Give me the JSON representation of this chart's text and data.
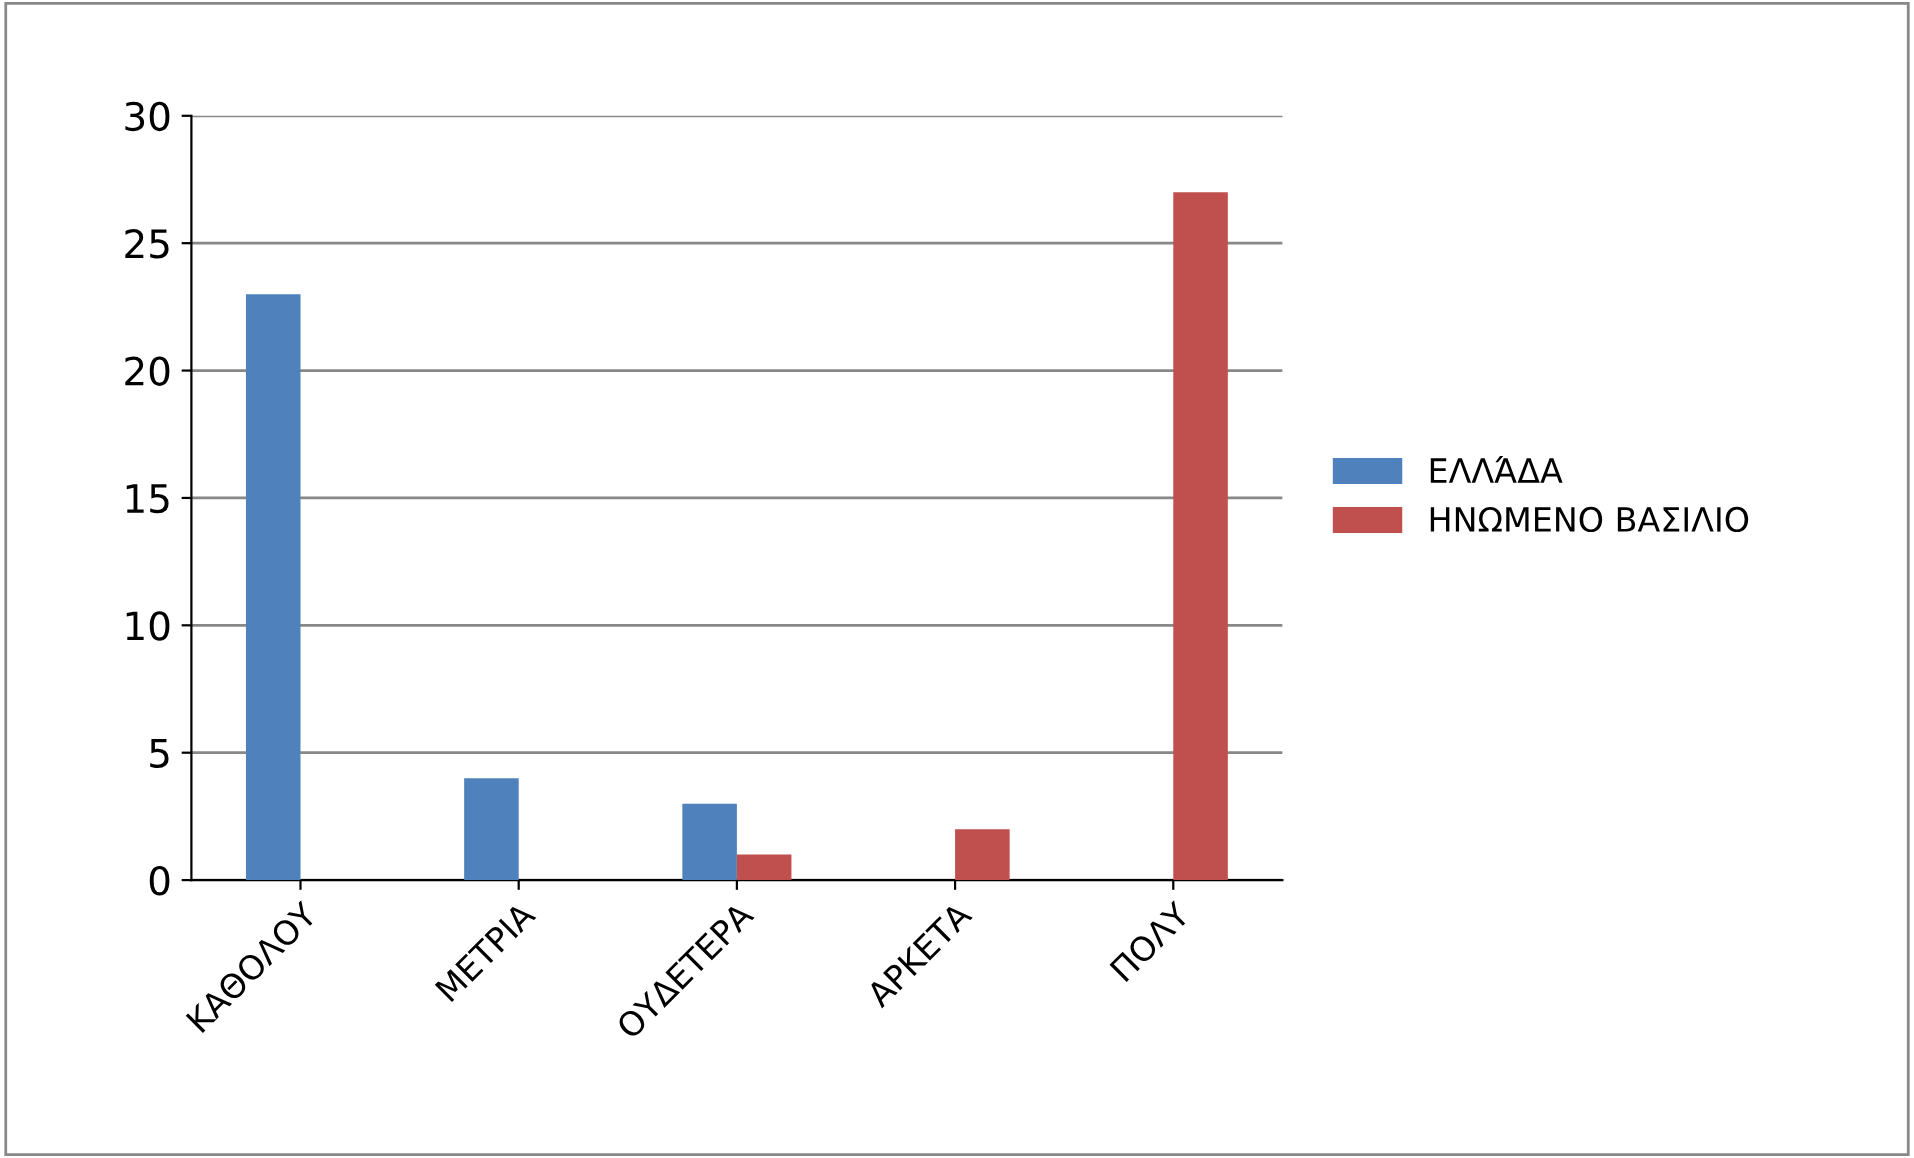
{
  "chart_data": {
    "type": "bar",
    "categories": [
      "ΚΑΘΟΛΟΥ",
      "ΜΕΤΡΙΑ",
      "ΟΥΔΕΤΕΡΑ",
      "ΑΡΚΕΤΑ",
      "ΠΟΛΥ"
    ],
    "series": [
      {
        "name": "ΕΛΛΆΔΑ",
        "color": "#4f81bd",
        "values": [
          23,
          4,
          3,
          0,
          0
        ]
      },
      {
        "name": "ΗΝΩΜΕΝΟ ΒΑΣΙΛΙΟ",
        "color": "#c0504d",
        "values": [
          0,
          0,
          1,
          2,
          27
        ]
      }
    ],
    "ylim": [
      0,
      30
    ],
    "yticks": [
      0,
      5,
      10,
      15,
      20,
      25,
      30
    ],
    "grid": "y",
    "legend": "right"
  }
}
